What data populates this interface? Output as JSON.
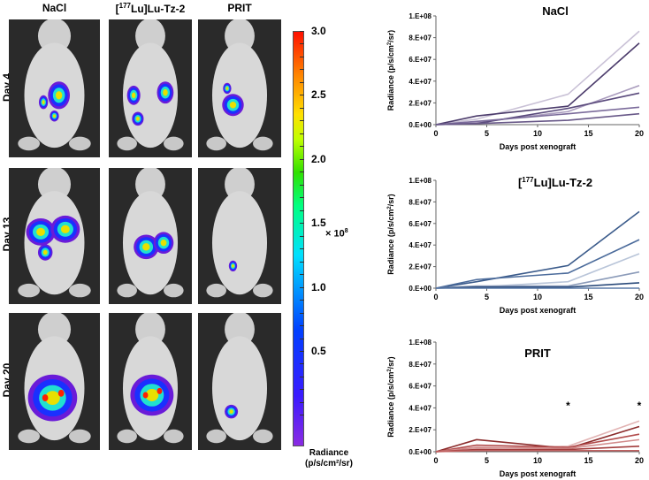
{
  "image_panel": {
    "columns": [
      "NaCl",
      "[177Lu]Lu-Tz-2",
      "PRIT"
    ],
    "rows": [
      "Day  4",
      "Day  13",
      "Day  20"
    ]
  },
  "colorbar": {
    "ticks": [
      "3.0",
      "2.5",
      "2.0",
      "1.5",
      "1.0",
      "0.5"
    ],
    "multiplier": "× 10^8",
    "label_line1": "Radiance",
    "label_line2": "(p/s/cm²/sr)",
    "colormap": "purple-blue-cyan-green-yellow-red"
  },
  "chart_data": [
    {
      "type": "line",
      "title": "NaCl",
      "xlabel": "Days post xenograft",
      "ylabel": "Radiance (p/s/cm²/sr)",
      "xlim": [
        0,
        20
      ],
      "ylim": [
        0,
        100000000
      ],
      "xticks": [
        "0",
        "5",
        "10",
        "15",
        "20"
      ],
      "yticks": [
        "0.E+00",
        "2.E+07",
        "4.E+07",
        "6.E+07",
        "8.E+07",
        "1.E+08"
      ],
      "x": [
        0,
        4,
        13,
        20
      ],
      "series": [
        {
          "color": "#c9c1d6",
          "values": [
            0,
            5000000,
            28000000,
            86000000
          ]
        },
        {
          "color": "#4b3b6b",
          "values": [
            0,
            8000000,
            17000000,
            75000000
          ]
        },
        {
          "color": "#a99bbd",
          "values": [
            0,
            2000000,
            12000000,
            36000000
          ]
        },
        {
          "color": "#5a4a7c",
          "values": [
            0,
            1000000,
            15000000,
            29000000
          ]
        },
        {
          "color": "#7b6b9b",
          "values": [
            0,
            3000000,
            10000000,
            16000000
          ]
        },
        {
          "color": "#685888",
          "values": [
            0,
            1000000,
            4000000,
            10000000
          ]
        }
      ],
      "annotations": []
    },
    {
      "type": "line",
      "title": "[177Lu]Lu-Tz-2",
      "xlabel": "Days post xenograft",
      "ylabel": "Radiance (p/s/cm²/sr)",
      "xlim": [
        0,
        20
      ],
      "ylim": [
        0,
        100000000
      ],
      "xticks": [
        "0",
        "5",
        "10",
        "15",
        "20"
      ],
      "yticks": [
        "0.E+00",
        "2.E+07",
        "4.E+07",
        "6.E+07",
        "8.E+07",
        "1.E+08"
      ],
      "x": [
        0,
        4,
        13,
        20
      ],
      "series": [
        {
          "color": "#3b5b8b",
          "values": [
            0,
            6000000,
            21000000,
            71000000
          ]
        },
        {
          "color": "#4b6b9b",
          "values": [
            0,
            8000000,
            14000000,
            45000000
          ]
        },
        {
          "color": "#b9c5d9",
          "values": [
            0,
            1000000,
            6000000,
            32000000
          ]
        },
        {
          "color": "#8b9bb9",
          "values": [
            0,
            2000000,
            2000000,
            15000000
          ]
        },
        {
          "color": "#2b4b7b",
          "values": [
            0,
            1000000,
            1000000,
            5000000
          ]
        },
        {
          "color": "#5b7ba9",
          "values": [
            0,
            0,
            0,
            0
          ]
        }
      ],
      "annotations": []
    },
    {
      "type": "line",
      "title": "PRIT",
      "xlabel": "Days post xenograft",
      "ylabel": "Radiance (p/s/cm²/sr)",
      "xlim": [
        0,
        20
      ],
      "ylim": [
        0,
        100000000
      ],
      "xticks": [
        "0",
        "5",
        "10",
        "15",
        "20"
      ],
      "yticks": [
        "0.E+00",
        "2.E+07",
        "4.E+07",
        "6.E+07",
        "8.E+07",
        "1.E+08"
      ],
      "x": [
        0,
        4,
        13,
        20
      ],
      "series": [
        {
          "color": "#e2b4b4",
          "values": [
            0,
            3000000,
            5000000,
            28000000
          ]
        },
        {
          "color": "#8b2b2b",
          "values": [
            0,
            11000000,
            3000000,
            23000000
          ]
        },
        {
          "color": "#b24c4c",
          "values": [
            0,
            6000000,
            4000000,
            16000000
          ]
        },
        {
          "color": "#d28c8c",
          "values": [
            0,
            4000000,
            3000000,
            11000000
          ]
        },
        {
          "color": "#a23c3c",
          "values": [
            0,
            2000000,
            2000000,
            5000000
          ]
        },
        {
          "color": "#c26262",
          "values": [
            0,
            1000000,
            1000000,
            1000000
          ]
        }
      ],
      "annotations": [
        {
          "text": "*",
          "x": 13,
          "y": 42000000
        },
        {
          "text": "*",
          "x": 20,
          "y": 42000000
        }
      ]
    }
  ]
}
